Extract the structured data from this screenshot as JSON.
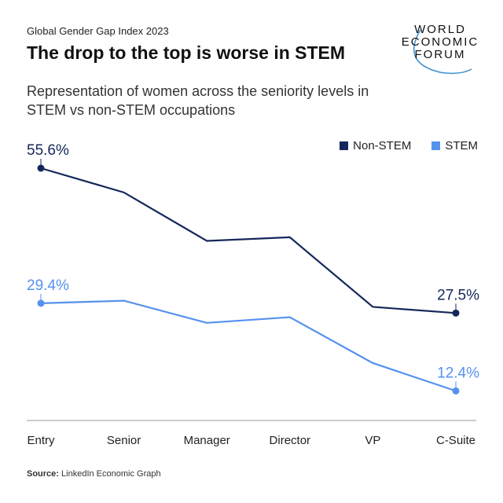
{
  "header": {
    "supertitle": "Global Gender Gap Index 2023",
    "title": "The drop to the top is worse in STEM",
    "subtitle": "Representation of women across the seniority levels in STEM vs non-STEM occupations"
  },
  "logo": {
    "lines": [
      "WORLD",
      "ECONOMIC",
      "FORUM"
    ]
  },
  "source": {
    "label": "Source:",
    "text": " LinkedIn Economic Graph"
  },
  "colors": {
    "non_stem": "#14285a",
    "stem": "#5591ee"
  },
  "chart_data": {
    "type": "line",
    "categories": [
      "Entry",
      "Senior",
      "Manager",
      "Director",
      "VP",
      "C-Suite"
    ],
    "series": [
      {
        "name": "Non-STEM",
        "color": "#14285a",
        "values": [
          55.6,
          50.9,
          41.5,
          42.2,
          28.7,
          27.5
        ]
      },
      {
        "name": "STEM",
        "color": "#5591ee",
        "values": [
          29.4,
          29.9,
          25.6,
          26.7,
          17.8,
          12.4
        ]
      }
    ],
    "data_labels": {
      "non_stem_first": "55.6%",
      "non_stem_last": "27.5%",
      "stem_first": "29.4%",
      "stem_last": "12.4%"
    },
    "legend": "top-right",
    "grid": false,
    "ylabel": "",
    "xlabel": ""
  }
}
